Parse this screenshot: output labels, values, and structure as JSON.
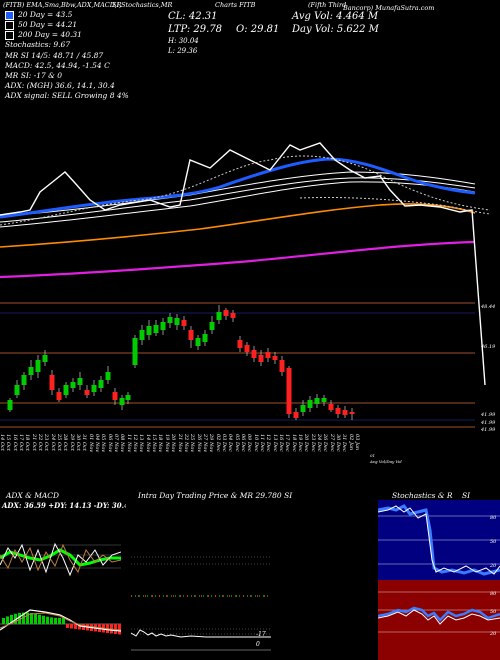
{
  "header": {
    "top_left": "(FITB) EMA,Sma,Bbw,ADX,MACD,R",
    "top_mid": "SI,Stochastics,MR",
    "title_right": "(Fifth Third",
    "title_right2": "Bancorp) MunafaSutra.com",
    "ticker_label": "Charts FITB"
  },
  "legend": {
    "items": [
      {
        "label": "20 Day = 43.5",
        "color": "#1e5cff"
      },
      {
        "label": "50 Day = 44.21",
        "color": "#ffffff"
      },
      {
        "label": "200 Day = 40.31",
        "color": "#ffffff"
      }
    ],
    "lines": [
      "Stochastics: 9.67",
      "MR          SI 14/5: 48.71 / 45.87",
      "MACD: 42.5, 44.94, -1.54  C",
      "MR          SI: -17 & 0",
      "ADX:          (MGH) 36.6, 14.1, 30.4",
      "ADX  signal: SELL Growing 8 4%"
    ]
  },
  "quote": {
    "cl": "CL: 42.31",
    "ltp": "LTP: 29.78",
    "o": "O: 29.81",
    "h": "H: 30.04",
    "l": "L: 29.36",
    "avg_vol": "Avg Vol: 4.464  M",
    "day_vol": "Day Vol: 5.622  M"
  },
  "price_labels": [
    "48.44",
    "46.19",
    "41.99",
    "41.99",
    "41.99"
  ],
  "dates": [
    "14 Oct",
    "15 Oct",
    "16 Oct",
    "17 Oct",
    "18 Oct",
    "21 Oct",
    "22 Oct",
    "23 Oct",
    "24 Oct",
    "25 Oct",
    "28 Oct",
    "29 Oct",
    "30 Oct",
    "31 Oct",
    "01 Nov",
    "04 Nov",
    "05 Nov",
    "06 Nov",
    "07 Nov",
    "08 Nov",
    "11 Nov",
    "12 Nov",
    "13 Nov",
    "14 Nov",
    "15 Nov",
    "18 Nov",
    "19 Nov",
    "20 Nov",
    "21 Nov",
    "22 Nov",
    "25 Nov",
    "26 Nov",
    "27 Nov",
    "29 Nov",
    "02 Dec",
    "03 Dec",
    "04 Dec",
    "05 Dec",
    "06 Dec",
    "09 Dec",
    "10 Dec",
    "11 Dec",
    "12 Dec",
    "13 Dec",
    "16 Dec",
    "17 Dec",
    "18 Dec",
    "19 Dec",
    "20 Dec",
    "23 Dec",
    "24 Dec",
    "26 Dec",
    "27 Dec",
    "30 Dec",
    "31 Dec",
    "02 Jan",
    "03 Jan"
  ],
  "footer_note": "Avg Vol/Day Vol",
  "footer_note_num": "01",
  "panels": {
    "adx_title": "ADX  & MACD",
    "adx_values": "ADX: 36.59 +DY: 14.13 -DY: 30.43",
    "intraday_title": "Intra Day Trading Price  & MR  29.780  SI",
    "stoch_title": "Stochastics & R",
    "stoch_si": "SI",
    "mr_value": "-17",
    "mr_zero": "0",
    "stoch_ticks": [
      "80",
      "50",
      "20"
    ],
    "rsi_ticks": [
      "80",
      "50",
      "20"
    ]
  }
}
